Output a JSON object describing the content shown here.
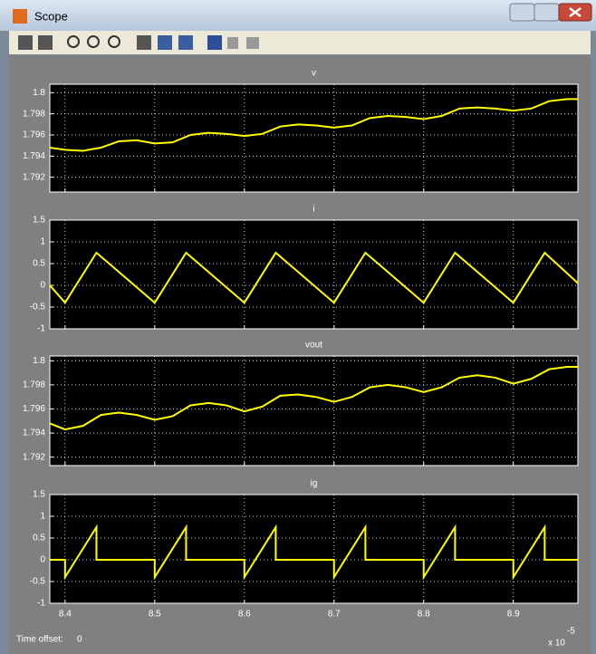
{
  "window": {
    "title": "Scope"
  },
  "chart_data": [
    {
      "type": "line",
      "title": "v",
      "x": [
        8.383,
        8.4,
        8.42,
        8.44,
        8.46,
        8.48,
        8.5,
        8.52,
        8.54,
        8.56,
        8.58,
        8.6,
        8.62,
        8.64,
        8.66,
        8.68,
        8.7,
        8.72,
        8.74,
        8.76,
        8.78,
        8.8,
        8.82,
        8.84,
        8.86,
        8.88,
        8.9,
        8.92,
        8.94,
        8.96,
        8.972
      ],
      "series": [
        {
          "color": "#ffff00",
          "values": [
            1.7948,
            1.7946,
            1.7945,
            1.7948,
            1.7954,
            1.7955,
            1.7952,
            1.7953,
            1.796,
            1.7962,
            1.7961,
            1.7959,
            1.7961,
            1.7968,
            1.797,
            1.7969,
            1.7967,
            1.7969,
            1.7976,
            1.7978,
            1.7977,
            1.7975,
            1.7978,
            1.7985,
            1.7986,
            1.7985,
            1.7983,
            1.7985,
            1.7992,
            1.7994,
            1.7994
          ]
        }
      ],
      "xlim": [
        8.383,
        8.972
      ],
      "xticks": [
        8.4,
        8.5,
        8.6,
        8.7,
        8.8,
        8.9
      ],
      "ylim": [
        1.7906,
        1.8008
      ],
      "yticks": [
        1.792,
        1.794,
        1.796,
        1.798,
        1.8
      ],
      "grid": true
    },
    {
      "type": "line",
      "title": "i",
      "x": [
        8.383,
        8.4,
        8.435,
        8.5,
        8.535,
        8.6,
        8.635,
        8.7,
        8.735,
        8.8,
        8.835,
        8.9,
        8.935,
        8.972
      ],
      "series": [
        {
          "color": "#ffff00",
          "values": [
            0,
            -0.4,
            0.75,
            -0.4,
            0.75,
            -0.4,
            0.75,
            -0.4,
            0.75,
            -0.4,
            0.75,
            -0.4,
            0.75,
            0.05
          ]
        }
      ],
      "xlim": [
        8.383,
        8.972
      ],
      "xticks": [
        8.4,
        8.5,
        8.6,
        8.7,
        8.8,
        8.9
      ],
      "ylim": [
        -1,
        1.5
      ],
      "yticks": [
        -1,
        -0.5,
        0,
        0.5,
        1,
        1.5
      ],
      "grid": true
    },
    {
      "type": "line",
      "title": "vout",
      "x": [
        8.383,
        8.4,
        8.42,
        8.44,
        8.46,
        8.48,
        8.5,
        8.52,
        8.54,
        8.56,
        8.58,
        8.6,
        8.62,
        8.64,
        8.66,
        8.68,
        8.7,
        8.72,
        8.74,
        8.76,
        8.78,
        8.8,
        8.82,
        8.84,
        8.86,
        8.88,
        8.9,
        8.92,
        8.94,
        8.96,
        8.972
      ],
      "series": [
        {
          "color": "#ffff00",
          "values": [
            1.7948,
            1.7943,
            1.7946,
            1.7955,
            1.7957,
            1.7955,
            1.7951,
            1.7954,
            1.7963,
            1.7965,
            1.7963,
            1.7958,
            1.7962,
            1.7971,
            1.7972,
            1.797,
            1.7966,
            1.797,
            1.7978,
            1.798,
            1.7978,
            1.7974,
            1.7978,
            1.7986,
            1.7988,
            1.7986,
            1.7981,
            1.7985,
            1.7993,
            1.7995,
            1.7995
          ]
        }
      ],
      "xlim": [
        8.383,
        8.972
      ],
      "xticks": [
        8.4,
        8.5,
        8.6,
        8.7,
        8.8,
        8.9
      ],
      "ylim": [
        1.7913,
        1.8004
      ],
      "yticks": [
        1.792,
        1.794,
        1.796,
        1.798,
        1.8
      ],
      "grid": true
    },
    {
      "type": "line",
      "title": "ig",
      "x": [
        8.383,
        8.4,
        8.4,
        8.435,
        8.435,
        8.5,
        8.5,
        8.535,
        8.535,
        8.6,
        8.6,
        8.635,
        8.635,
        8.7,
        8.7,
        8.735,
        8.735,
        8.8,
        8.8,
        8.835,
        8.835,
        8.9,
        8.9,
        8.935,
        8.935,
        8.972
      ],
      "series": [
        {
          "color": "#ffff00",
          "values": [
            0,
            0,
            -0.4,
            0.75,
            0,
            0,
            -0.4,
            0.75,
            0,
            0,
            -0.4,
            0.75,
            0,
            0,
            -0.4,
            0.75,
            0,
            0,
            -0.4,
            0.75,
            0,
            0,
            -0.4,
            0.75,
            0,
            0
          ]
        }
      ],
      "xlim": [
        8.383,
        8.972
      ],
      "xticks": [
        8.4,
        8.5,
        8.6,
        8.7,
        8.8,
        8.9
      ],
      "ylim": [
        -1,
        1.5
      ],
      "yticks": [
        -1,
        -0.5,
        0,
        0.5,
        1,
        1.5
      ],
      "grid": true
    }
  ],
  "x_exponent": {
    "base": "x 10",
    "power": "-5"
  },
  "time_offset": {
    "label": "Time offset:",
    "value": 0
  }
}
